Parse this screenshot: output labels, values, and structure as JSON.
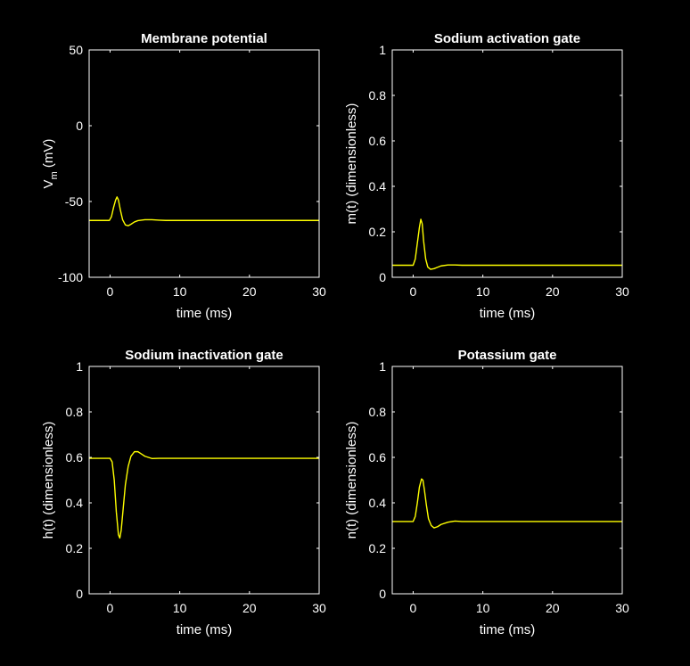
{
  "chart_data": [
    {
      "type": "line",
      "title": "Membrane potential",
      "xlabel": "time (ms)",
      "ylabel": "V",
      "ylabel_sub": "m",
      "ylabel_unit": " (mV)",
      "xlim": [
        -3,
        30
      ],
      "ylim": [
        -100,
        50
      ],
      "xticks": [
        0,
        10,
        20,
        30
      ],
      "yticks": [
        -100,
        -50,
        0,
        50
      ],
      "color": "#ffff00",
      "series": [
        {
          "x": [
            -3,
            -0.1,
            0.2,
            0.5,
            0.8,
            1.0,
            1.2,
            1.5,
            1.8,
            2.2,
            2.6,
            3.0,
            3.5,
            4.0,
            5.0,
            6.0,
            7.0,
            8.0,
            10.0,
            30.0
          ],
          "y": [
            -62.5,
            -62.5,
            -60,
            -54,
            -49,
            -47,
            -49,
            -56,
            -62,
            -65.5,
            -66,
            -65,
            -63.5,
            -62.6,
            -62,
            -62,
            -62.3,
            -62.5,
            -62.5,
            -62.5
          ]
        }
      ]
    },
    {
      "type": "line",
      "title": "Sodium activation gate",
      "xlabel": "time (ms)",
      "ylabel": "m(t) (dimensionless)",
      "xlim": [
        -3,
        30
      ],
      "ylim": [
        0,
        1
      ],
      "xticks": [
        0,
        10,
        20,
        30
      ],
      "yticks": [
        0,
        0.2,
        0.4,
        0.6,
        0.8,
        1
      ],
      "color": "#ffff00",
      "series": [
        {
          "x": [
            -3,
            0.0,
            0.3,
            0.6,
            0.9,
            1.1,
            1.3,
            1.5,
            1.8,
            2.1,
            2.5,
            3.0,
            3.5,
            4.0,
            5.0,
            6.0,
            7.0,
            8.0,
            10.0,
            30.0
          ],
          "y": [
            0.053,
            0.053,
            0.08,
            0.15,
            0.22,
            0.255,
            0.235,
            0.16,
            0.08,
            0.045,
            0.035,
            0.038,
            0.044,
            0.05,
            0.054,
            0.054,
            0.053,
            0.053,
            0.053,
            0.053
          ]
        }
      ]
    },
    {
      "type": "line",
      "title": "Sodium inactivation gate",
      "xlabel": "time (ms)",
      "ylabel": "h(t) (dimensionless)",
      "xlim": [
        -3,
        30
      ],
      "ylim": [
        0,
        1
      ],
      "xticks": [
        0,
        10,
        20,
        30
      ],
      "yticks": [
        0,
        0.2,
        0.4,
        0.6,
        0.8,
        1
      ],
      "color": "#ffff00",
      "series": [
        {
          "x": [
            -3,
            0.0,
            0.3,
            0.6,
            0.9,
            1.2,
            1.4,
            1.6,
            1.9,
            2.2,
            2.6,
            3.0,
            3.5,
            4.0,
            4.5,
            5.0,
            6.0,
            7.0,
            8.0,
            10.0,
            30.0
          ],
          "y": [
            0.596,
            0.596,
            0.58,
            0.5,
            0.36,
            0.26,
            0.245,
            0.28,
            0.38,
            0.48,
            0.56,
            0.605,
            0.625,
            0.625,
            0.615,
            0.605,
            0.595,
            0.596,
            0.596,
            0.596,
            0.596
          ]
        }
      ]
    },
    {
      "type": "line",
      "title": "Potassium gate",
      "xlabel": "time (ms)",
      "ylabel": "n(t) (dimensionless)",
      "xlim": [
        -3,
        30
      ],
      "ylim": [
        0,
        1
      ],
      "xticks": [
        0,
        10,
        20,
        30
      ],
      "yticks": [
        0,
        0.2,
        0.4,
        0.6,
        0.8,
        1
      ],
      "color": "#ffff00",
      "series": [
        {
          "x": [
            -3,
            0.0,
            0.3,
            0.6,
            0.9,
            1.2,
            1.4,
            1.6,
            1.9,
            2.2,
            2.6,
            3.0,
            3.5,
            4.0,
            5.0,
            6.0,
            7.0,
            8.0,
            10.0,
            30.0
          ],
          "y": [
            0.318,
            0.318,
            0.34,
            0.4,
            0.47,
            0.505,
            0.5,
            0.46,
            0.39,
            0.33,
            0.3,
            0.29,
            0.295,
            0.305,
            0.315,
            0.32,
            0.318,
            0.318,
            0.318,
            0.318
          ]
        }
      ]
    }
  ]
}
